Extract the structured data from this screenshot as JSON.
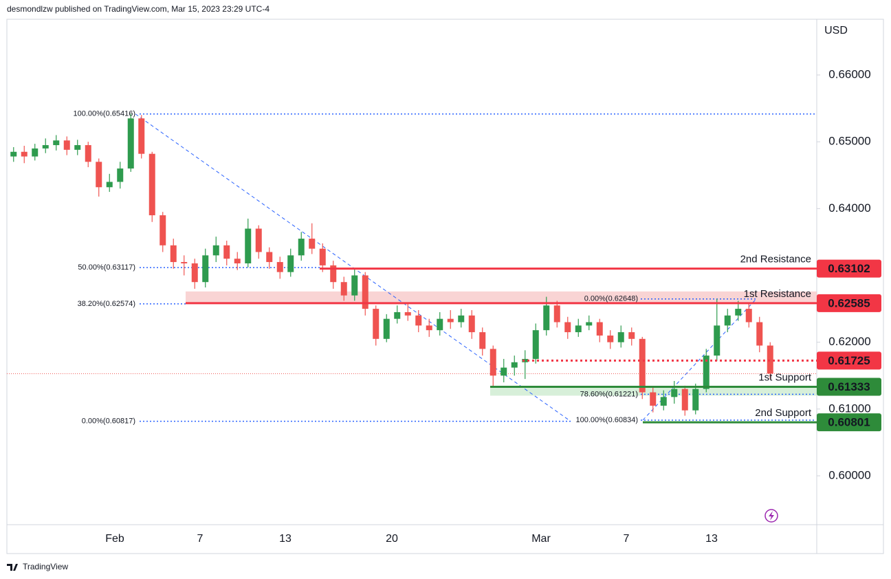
{
  "chart_data": {
    "type": "candlestick",
    "header": "desmondlzw published on TradingView.com, Mar 15, 2023 23:29 UTC-4",
    "footer": "TradingView",
    "currency": "USD",
    "categories": [
      null,
      null,
      null,
      null,
      null,
      null,
      null,
      null,
      null,
      null,
      "Feb",
      null,
      null,
      null,
      null,
      null,
      null,
      null,
      "7",
      null,
      null,
      null,
      null,
      null,
      null,
      null,
      "13",
      null,
      null,
      null,
      null,
      null,
      null,
      null,
      null,
      null,
      "20",
      null,
      null,
      null,
      null,
      null,
      null,
      null,
      null,
      null,
      null,
      null,
      null,
      null,
      "Mar",
      null,
      null,
      null,
      null,
      null,
      null,
      null,
      "7",
      null,
      null,
      null,
      null,
      null,
      null,
      null,
      "13",
      null,
      null,
      null,
      null,
      null
    ],
    "open": [
      0.6478,
      0.6485,
      0.6478,
      0.649,
      0.6495,
      0.6502,
      0.6488,
      0.6495,
      0.647,
      0.6432,
      0.644,
      0.646,
      0.6535,
      0.6482,
      0.639,
      0.6345,
      0.632,
      0.6318,
      0.629,
      0.633,
      0.6345,
      0.6325,
      0.6318,
      0.637,
      0.6335,
      0.632,
      0.6305,
      0.633,
      0.6355,
      0.634,
      0.6315,
      0.629,
      0.627,
      0.63,
      0.625,
      0.6205,
      0.6235,
      0.6245,
      0.624,
      0.6225,
      0.6218,
      0.6235,
      0.623,
      0.624,
      0.6215,
      0.619,
      0.615,
      0.6162,
      0.617,
      0.6175,
      0.6218,
      0.6255,
      0.623,
      0.6215,
      0.6225,
      0.623,
      0.621,
      0.62,
      0.6215,
      0.6205,
      0.6125,
      0.6105,
      0.6118,
      0.613,
      0.6098,
      0.613,
      0.618,
      0.6225,
      0.624,
      0.625,
      0.623,
      0.6195
    ],
    "high": [
      0.6492,
      0.6494,
      0.6497,
      0.6505,
      0.651,
      0.6508,
      0.6503,
      0.65,
      0.6475,
      0.6452,
      0.647,
      0.6542,
      0.654,
      0.6485,
      0.6395,
      0.6355,
      0.633,
      0.6325,
      0.634,
      0.6358,
      0.6352,
      0.6335,
      0.6385,
      0.6375,
      0.6342,
      0.6328,
      0.634,
      0.6365,
      0.6378,
      0.6348,
      0.6322,
      0.6298,
      0.631,
      0.6305,
      0.6255,
      0.6242,
      0.6255,
      0.6258,
      0.6248,
      0.6235,
      0.6245,
      0.6248,
      0.625,
      0.6248,
      0.6222,
      0.6195,
      0.6175,
      0.618,
      0.6188,
      0.6228,
      0.6268,
      0.6262,
      0.6238,
      0.6235,
      0.624,
      0.6235,
      0.6218,
      0.6225,
      0.6222,
      0.6208,
      0.6132,
      0.6128,
      0.6142,
      0.6135,
      0.6138,
      0.619,
      0.6265,
      0.625,
      0.6262,
      0.6258,
      0.6238,
      0.62
    ],
    "low": [
      0.647,
      0.6468,
      0.6472,
      0.6483,
      0.6487,
      0.648,
      0.648,
      0.6462,
      0.6418,
      0.6425,
      0.643,
      0.6455,
      0.6475,
      0.638,
      0.6335,
      0.631,
      0.63,
      0.628,
      0.6282,
      0.632,
      0.6315,
      0.6308,
      0.6312,
      0.6325,
      0.631,
      0.6295,
      0.6298,
      0.6322,
      0.6332,
      0.6305,
      0.628,
      0.6262,
      0.6262,
      0.624,
      0.6195,
      0.62,
      0.6228,
      0.6232,
      0.6215,
      0.6208,
      0.621,
      0.622,
      0.6222,
      0.6205,
      0.618,
      0.6133,
      0.614,
      0.615,
      0.6145,
      0.6168,
      0.621,
      0.6222,
      0.6205,
      0.6208,
      0.6218,
      0.62,
      0.619,
      0.6192,
      0.6195,
      0.6115,
      0.6095,
      0.6098,
      0.6108,
      0.609,
      0.6092,
      0.6125,
      0.6172,
      0.6215,
      0.6232,
      0.6222,
      0.6185,
      0.6145
    ],
    "close": [
      0.6485,
      0.6478,
      0.649,
      0.6495,
      0.6502,
      0.6488,
      0.6495,
      0.647,
      0.6432,
      0.644,
      0.646,
      0.6535,
      0.6482,
      0.639,
      0.6345,
      0.632,
      0.6318,
      0.629,
      0.633,
      0.6345,
      0.6325,
      0.6318,
      0.637,
      0.6335,
      0.632,
      0.6305,
      0.633,
      0.6355,
      0.634,
      0.6315,
      0.629,
      0.627,
      0.63,
      0.625,
      0.6205,
      0.6235,
      0.6245,
      0.624,
      0.6225,
      0.6218,
      0.6235,
      0.623,
      0.624,
      0.6215,
      0.619,
      0.615,
      0.6162,
      0.617,
      0.6175,
      0.6218,
      0.6255,
      0.623,
      0.6215,
      0.6225,
      0.623,
      0.621,
      0.62,
      0.6215,
      0.6205,
      0.6125,
      0.6105,
      0.6118,
      0.613,
      0.6098,
      0.613,
      0.618,
      0.6225,
      0.624,
      0.625,
      0.623,
      0.6195,
      0.6153
    ],
    "up_color": "#2e9b4e",
    "down_color": "#ef5350",
    "ylim": [
      0.59269,
      0.66834
    ],
    "yticks": [
      {
        "value": 0.66,
        "label": "0.66000"
      },
      {
        "value": 0.65,
        "label": "0.65000"
      },
      {
        "value": 0.64,
        "label": "0.64000"
      },
      {
        "value": 0.62,
        "label": "0.62000"
      },
      {
        "value": 0.61,
        "label": "0.61000"
      },
      {
        "value": 0.6,
        "label": "0.60000"
      }
    ],
    "fib_color": "#2962ff",
    "fib_a": [
      {
        "label": "100.00%(0.65416)",
        "value": 0.65416
      },
      {
        "label": "50.00%(0.63117)",
        "value": 0.63117
      },
      {
        "label": "38.20%(0.62574)",
        "value": 0.62574
      },
      {
        "label": "0.00%(0.60817)",
        "value": 0.60817
      }
    ],
    "fib_b": [
      {
        "label": "0.00%(0.62648)",
        "value": 0.62648
      },
      {
        "label": "78.60%(0.61221)",
        "value": 0.61221
      },
      {
        "label": "100.00%(0.60834)",
        "value": 0.60834
      }
    ],
    "zones": [
      {
        "from": 0.62585,
        "to": 0.6276,
        "color": "#f8c9c9"
      },
      {
        "from": 0.612,
        "to": 0.61333,
        "color": "#cdebd0"
      }
    ],
    "levels": [
      {
        "name": "2nd Resistance",
        "value": 0.63102,
        "color": "#f23645"
      },
      {
        "name": "1st Resistance",
        "value": 0.62585,
        "color": "#f23645"
      },
      {
        "value": 0.61725,
        "color": "#f23645"
      },
      {
        "name": "1st Support",
        "value": 0.61333,
        "color": "#2e8b3a"
      },
      {
        "name": "2nd Support",
        "value": 0.60801,
        "color": "#2e8b3a"
      }
    ]
  }
}
